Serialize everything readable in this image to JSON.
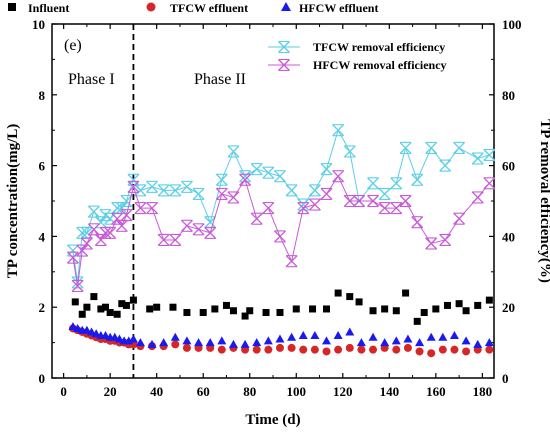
{
  "chart_data": {
    "type": "scatter",
    "panel_label": "(e)",
    "xlabel": "Time (d)",
    "ylabel_left": "TP concentration(mg/L)",
    "ylabel_right": "TP removal efficiency(%)",
    "xlim": [
      -5,
      185
    ],
    "ylim_left": [
      0,
      10
    ],
    "ylim_right": [
      0,
      100
    ],
    "x_ticks": [
      0,
      20,
      40,
      60,
      80,
      100,
      120,
      140,
      160,
      180
    ],
    "y_left_ticks": [
      0,
      2,
      4,
      6,
      8,
      10
    ],
    "y_right_ticks": [
      0,
      20,
      40,
      60,
      80,
      100
    ],
    "phase_divider_x": 30,
    "phase_labels": [
      "Phase I",
      "Phase II"
    ],
    "legend_top": [
      "Influent",
      "TFCW effluent",
      "HFCW effluent"
    ],
    "legend_inner": [
      "TFCW removal efficiency",
      "HFCW removal efficiency"
    ],
    "colors": {
      "influent": "#000000",
      "tfcw_effluent": "#d62728",
      "hfcw_effluent": "#1a1aee",
      "tfcw_removal": "#5ccfe6",
      "hfcw_removal": "#c85ad8"
    },
    "series_concentration": [
      {
        "name": "Influent",
        "axis": "left",
        "marker": "square",
        "x": [
          5,
          8,
          10,
          13,
          16,
          18,
          20,
          23,
          25,
          27,
          30,
          37,
          40,
          47,
          53,
          60,
          65,
          70,
          73,
          78,
          80,
          87,
          93,
          100,
          107,
          113,
          118,
          123,
          127,
          133,
          138,
          143,
          147,
          152,
          155,
          160,
          165,
          170,
          173,
          178,
          183
        ],
        "y": [
          2.15,
          1.8,
          2.0,
          2.3,
          1.95,
          2.0,
          1.85,
          1.8,
          2.1,
          2.05,
          2.2,
          1.95,
          2.0,
          2.0,
          1.85,
          1.85,
          1.95,
          2.05,
          1.9,
          1.75,
          1.9,
          1.85,
          1.85,
          1.95,
          1.95,
          1.95,
          2.4,
          2.3,
          2.15,
          1.9,
          1.95,
          1.9,
          2.4,
          1.6,
          1.85,
          1.95,
          2.05,
          2.1,
          1.9,
          2.05,
          2.2
        ]
      },
      {
        "name": "TFCW effluent",
        "axis": "left",
        "marker": "circle",
        "x": [
          4,
          6,
          8,
          10,
          12,
          14,
          16,
          18,
          20,
          22,
          24,
          26,
          28,
          30,
          33,
          38,
          43,
          48,
          53,
          58,
          63,
          68,
          73,
          78,
          83,
          88,
          93,
          98,
          103,
          108,
          113,
          118,
          123,
          128,
          133,
          138,
          143,
          148,
          153,
          158,
          163,
          168,
          173,
          178,
          183
        ],
        "y": [
          1.4,
          1.35,
          1.3,
          1.25,
          1.2,
          1.15,
          1.1,
          1.1,
          1.05,
          1.05,
          1.0,
          1.0,
          0.95,
          0.95,
          0.9,
          0.9,
          0.9,
          0.95,
          0.85,
          0.85,
          0.85,
          0.8,
          0.85,
          0.8,
          0.8,
          0.8,
          0.85,
          0.85,
          0.8,
          0.8,
          0.75,
          0.8,
          0.85,
          0.8,
          0.8,
          0.85,
          0.8,
          0.85,
          0.75,
          0.7,
          0.8,
          0.8,
          0.75,
          0.8,
          0.8
        ]
      },
      {
        "name": "HFCW effluent",
        "axis": "left",
        "marker": "triangle",
        "x": [
          4,
          6,
          8,
          10,
          12,
          14,
          16,
          18,
          20,
          22,
          24,
          26,
          28,
          30,
          33,
          38,
          43,
          48,
          53,
          58,
          63,
          68,
          73,
          78,
          83,
          88,
          93,
          98,
          103,
          108,
          113,
          118,
          123,
          128,
          133,
          138,
          143,
          148,
          153,
          158,
          163,
          168,
          173,
          178,
          183
        ],
        "y": [
          1.45,
          1.4,
          1.35,
          1.35,
          1.3,
          1.25,
          1.2,
          1.2,
          1.15,
          1.15,
          1.1,
          1.05,
          1.05,
          1.1,
          1.0,
          0.95,
          1.0,
          1.15,
          1.05,
          1.0,
          1.0,
          1.05,
          0.95,
          0.95,
          1.0,
          1.05,
          1.1,
          1.15,
          1.2,
          1.2,
          1.05,
          1.2,
          1.3,
          1.0,
          1.15,
          1.0,
          1.05,
          1.1,
          1.0,
          1.15,
          1.15,
          1.2,
          1.05,
          0.95,
          1.0
        ]
      }
    ],
    "series_removal": [
      {
        "name": "TFCW removal efficiency",
        "axis": "right",
        "marker": "cross-star",
        "x": [
          4,
          6,
          8,
          10,
          13,
          16,
          18,
          20,
          23,
          25,
          27,
          30,
          33,
          38,
          43,
          48,
          53,
          58,
          63,
          68,
          73,
          78,
          83,
          88,
          93,
          98,
          103,
          108,
          113,
          118,
          123,
          127,
          133,
          138,
          143,
          147,
          152,
          158,
          164,
          170,
          178,
          183
        ],
        "y": [
          36,
          27,
          41,
          41,
          47,
          44,
          46,
          45,
          48,
          48,
          50,
          56,
          53,
          54,
          53,
          53,
          54,
          52,
          44,
          56,
          64,
          57,
          59,
          58,
          57,
          53,
          49,
          53,
          59,
          70,
          64,
          50,
          55,
          52,
          55,
          65,
          56,
          65,
          60,
          65,
          62,
          63
        ]
      },
      {
        "name": "HFCW removal efficiency",
        "axis": "right",
        "marker": "cross-star",
        "x": [
          4,
          6,
          8,
          10,
          13,
          16,
          18,
          20,
          23,
          25,
          27,
          30,
          33,
          38,
          43,
          48,
          53,
          58,
          63,
          68,
          73,
          78,
          83,
          88,
          93,
          98,
          103,
          108,
          113,
          118,
          123,
          127,
          133,
          138,
          143,
          147,
          152,
          158,
          164,
          170,
          178,
          183
        ],
        "y": [
          34,
          26,
          36,
          38,
          42,
          39,
          41,
          41,
          45,
          43,
          46,
          54,
          48,
          48,
          39,
          39,
          43,
          42,
          41,
          52,
          51,
          56,
          45,
          48,
          40,
          33,
          48,
          49,
          52,
          57,
          50,
          50,
          50,
          48,
          48,
          50,
          44,
          38,
          39,
          45,
          51,
          55
        ]
      }
    ]
  }
}
